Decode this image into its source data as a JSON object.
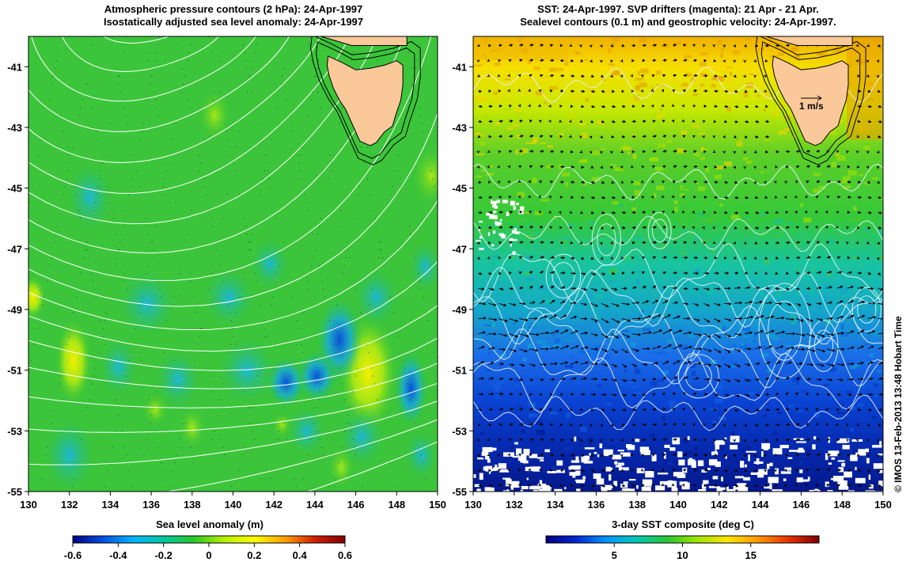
{
  "left_panel": {
    "title_line1": "Atmospheric pressure contours (2 hPa): 24-Apr-1997",
    "title_line2": "Isostatically adjusted sea level anomaly: 24-Apr-1997",
    "colorbar_label": "Sea level anomaly (m)",
    "colorbar_ticks": [
      "-0.6",
      "-0.4",
      "-0.2",
      "0",
      "0.2",
      "0.4",
      "0.6"
    ]
  },
  "right_panel": {
    "title_line1": "SST: 24-Apr-1997. SVP drifters (magenta): 21 Apr - 21 Apr.",
    "title_line2": "Sealevel contours (0.1 m) and geostrophic velocity: 24-Apr-1997.",
    "colorbar_label": "3-day SST composite (deg C)",
    "colorbar_ticks": [
      "5",
      "10",
      "15"
    ],
    "velocity_scale_label": "1 m/s"
  },
  "axes": {
    "lon_ticks": [
      "130",
      "132",
      "134",
      "136",
      "138",
      "140",
      "142",
      "144",
      "146",
      "148",
      "150"
    ],
    "lat_ticks": [
      "-41",
      "-43",
      "-45",
      "-47",
      "-49",
      "-51",
      "-53",
      "-55"
    ],
    "lon_range": [
      130,
      150
    ],
    "lat_range": [
      -55,
      -40
    ]
  },
  "credit": "© IMOS 13-Feb-2013 13:48 Hobart Time",
  "colors": {
    "land": "#fbc89a",
    "sla_scale": [
      "#000080",
      "#0050e0",
      "#00b4ff",
      "#00c8a0",
      "#28c828",
      "#b4f000",
      "#ffff00",
      "#ffa000",
      "#d02000",
      "#800000"
    ],
    "sst_scale": [
      "#000080",
      "#0028d0",
      "#0096ff",
      "#00c8b4",
      "#28c832",
      "#a0e600",
      "#ffe600",
      "#ff9600",
      "#e63200",
      "#800000"
    ]
  }
}
